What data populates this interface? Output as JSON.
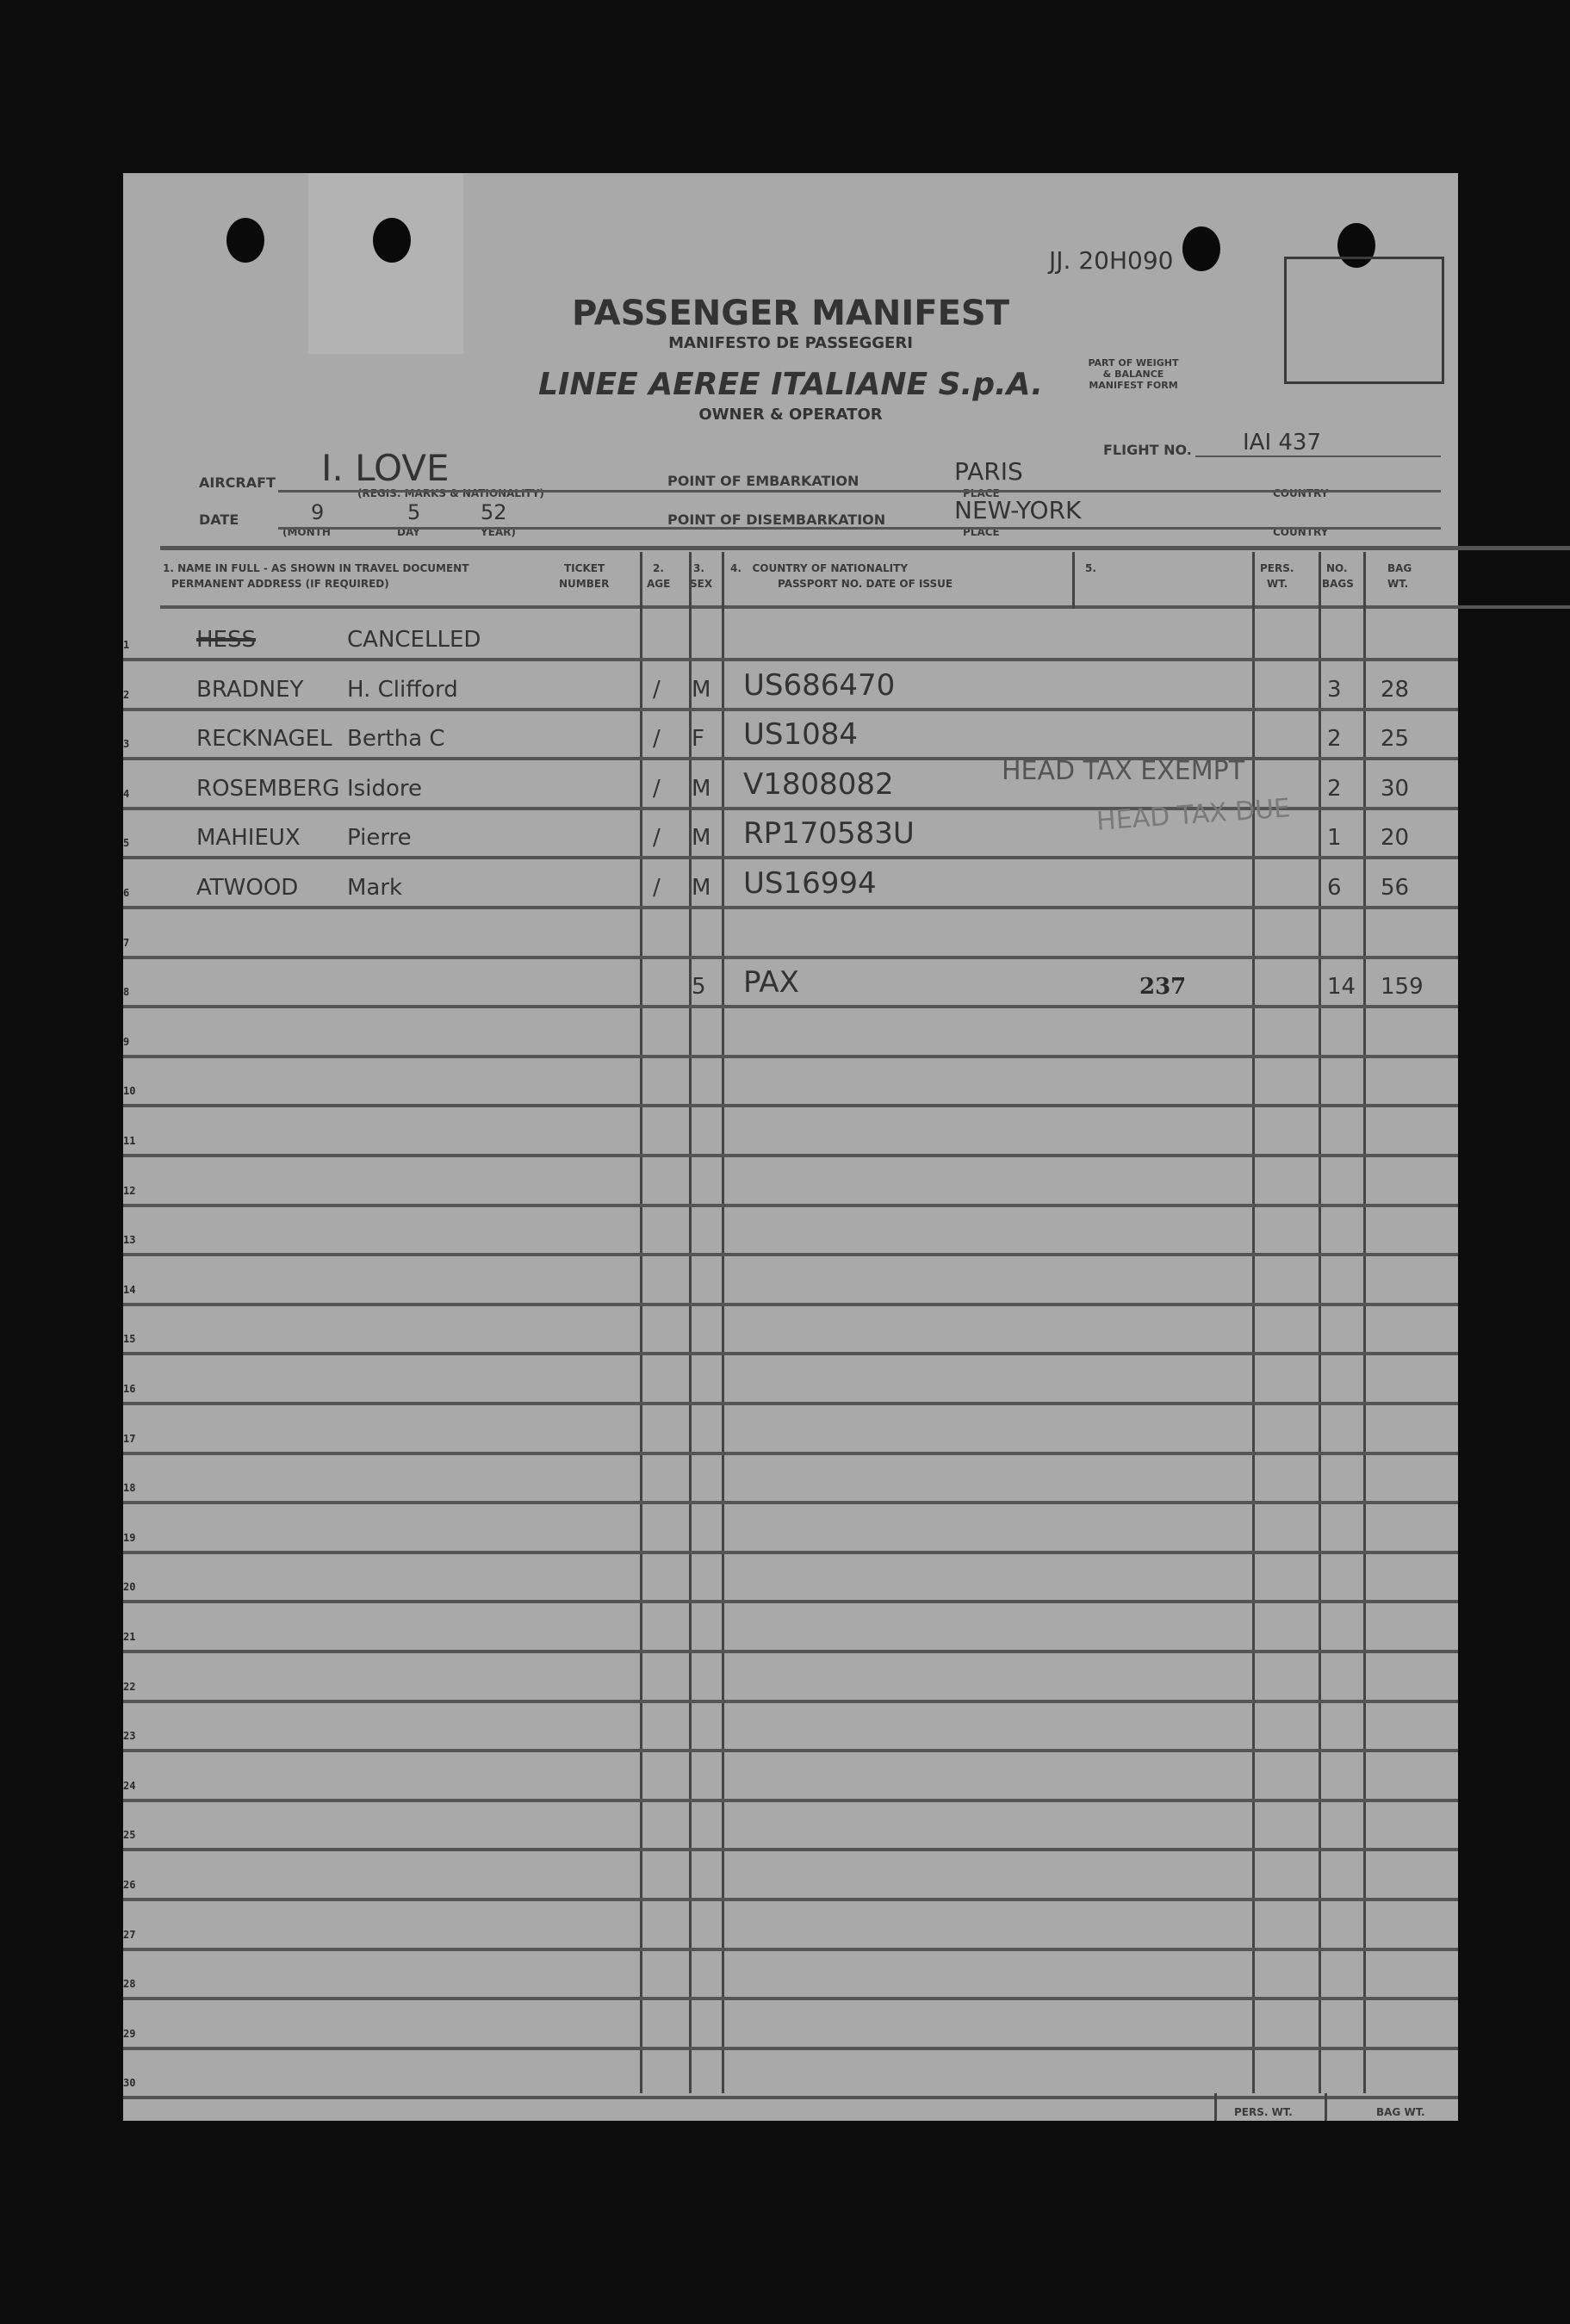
{
  "header": {
    "serial": "JJ. 20H090",
    "title": "PASSENGER MANIFEST",
    "subtitle": "MANIFESTO DE PASSEGGERI",
    "airline": "LINEE AEREE ITALIANE S.p.A.",
    "owner_label": "OWNER & OPERATOR",
    "weight_box_label": "PART OF WEIGHT & BALANCE MANIFEST FORM",
    "flight_label": "FLIGHT NO.",
    "flight_value": "IAI 437",
    "aircraft_label": "AIRCRAFT",
    "aircraft_value": "I. LOVE",
    "aircraft_note": "(REGIS. MARKS & NATIONALITY)",
    "embark_label": "POINT OF EMBARKATION",
    "embark_value": "PARIS",
    "disembark_label": "POINT OF DISEMBARKATION",
    "disembark_value": "NEW-YORK",
    "place_label": "PLACE",
    "country_label": "COUNTRY",
    "date_label": "DATE",
    "date_month": "9",
    "date_day": "5",
    "date_year": "52",
    "month_label": "(MONTH",
    "day_label": "DAY",
    "year_label": "YEAR)"
  },
  "columns": {
    "name": "1. NAME IN FULL - AS SHOWN IN TRAVEL DOCUMENT",
    "name2": "PERMANENT ADDRESS (IF REQUIRED)",
    "ticket": "TICKET",
    "ticket2": "NUMBER",
    "age": "2.",
    "age2": "AGE",
    "sex": "3.",
    "sex2": "SEX",
    "country": "4.   COUNTRY OF NATIONALITY",
    "country2": "PASSPORT NO. DATE OF ISSUE",
    "col5": "5.",
    "pers": "PERS.",
    "pers2": "WT.",
    "bags": "NO.",
    "bags2": "BAGS",
    "bagwt": "BAG",
    "bagwt2": "WT."
  },
  "rows": [
    {
      "n": "1",
      "name": "HESS",
      "given": "CANCELLED",
      "age": "",
      "sex": "",
      "passport": "",
      "bags": "",
      "bagwt": ""
    },
    {
      "n": "2",
      "name": "BRADNEY",
      "given": "H. Clifford",
      "age": "/",
      "sex": "M",
      "passport": "US686470",
      "bags": "3",
      "bagwt": "28"
    },
    {
      "n": "3",
      "name": "RECKNAGEL",
      "given": "Bertha C",
      "age": "/",
      "sex": "F",
      "passport": "US1084",
      "bags": "2",
      "bagwt": "25"
    },
    {
      "n": "4",
      "name": "ROSEMBERG",
      "given": "Isidore",
      "age": "/",
      "sex": "M",
      "passport": "V1808082",
      "bags": "2",
      "bagwt": "30"
    },
    {
      "n": "5",
      "name": "MAHIEUX",
      "given": "Pierre",
      "age": "/",
      "sex": "M",
      "passport": "RP170583U",
      "bags": "1",
      "bagwt": "20"
    },
    {
      "n": "6",
      "name": "ATWOOD",
      "given": "Mark",
      "age": "/",
      "sex": "M",
      "passport": "US16994",
      "bags": "6",
      "bagwt": "56"
    },
    {
      "n": "7"
    },
    {
      "n": "8",
      "sex": "5",
      "passport": "PAX",
      "col5": "237",
      "bags": "14",
      "bagwt": "159"
    },
    {
      "n": "9"
    },
    {
      "n": "10"
    },
    {
      "n": "11"
    },
    {
      "n": "12"
    },
    {
      "n": "13"
    },
    {
      "n": "14"
    },
    {
      "n": "15"
    },
    {
      "n": "16"
    },
    {
      "n": "17"
    },
    {
      "n": "18"
    },
    {
      "n": "19"
    },
    {
      "n": "20"
    },
    {
      "n": "21"
    },
    {
      "n": "22"
    },
    {
      "n": "23"
    },
    {
      "n": "24"
    },
    {
      "n": "25"
    },
    {
      "n": "26"
    },
    {
      "n": "27"
    },
    {
      "n": "28"
    },
    {
      "n": "29"
    },
    {
      "n": "30"
    }
  ],
  "stamps": {
    "exempt": "HEAD TAX EXEMPT",
    "due": "HEAD TAX DUE"
  },
  "footer": {
    "pers_total": "PERS. WT.",
    "bag_total": "BAG WT."
  }
}
